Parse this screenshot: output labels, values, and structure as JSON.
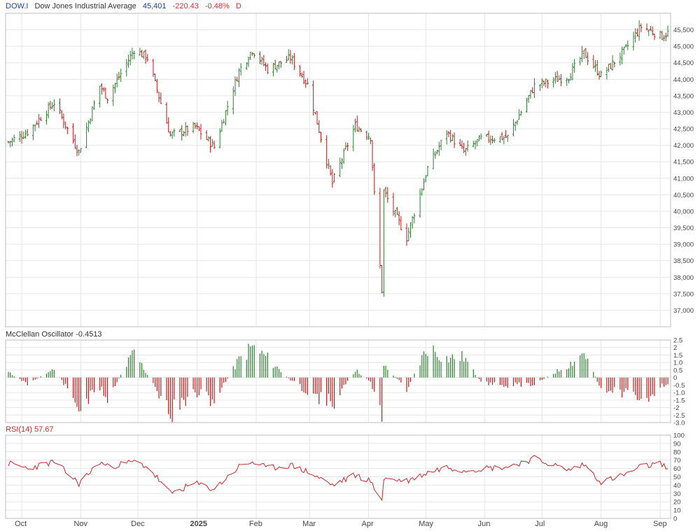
{
  "header": {
    "symbol": "DOW.I",
    "name": "Dow Jones Industrial Average",
    "last": "45,401",
    "change": "-220.43",
    "change_pct": "-0.48%",
    "period": "D"
  },
  "colors": {
    "up": "#2e7d32",
    "down": "#b71c1c",
    "symbol": "#1a3fa8",
    "negative": "#d32f2f",
    "grid": "#e6e6e6",
    "rsi_line": "#c62828"
  },
  "osc_header": {
    "label": "McClellan Oscillator -0.4513"
  },
  "rsi_header": {
    "label": "RSI(14) 57.67"
  },
  "chart_data": [
    {
      "type": "line",
      "title": "DOW.I Dow Jones Industrial Average",
      "subtype": "ohlc",
      "x": [
        "2024-09-24",
        "2024-10-04",
        "2024-10-18",
        "2024-10-31",
        "2024-11-11",
        "2024-11-15",
        "2024-11-29",
        "2024-12-06",
        "2024-12-18",
        "2024-12-31",
        "2025-01-10",
        "2025-01-23",
        "2025-01-30",
        "2025-02-07",
        "2025-02-19",
        "2025-02-28",
        "2025-03-13",
        "2025-03-25",
        "2025-04-02",
        "2025-04-04",
        "2025-04-08",
        "2025-04-09",
        "2025-04-21",
        "2025-05-02",
        "2025-05-12",
        "2025-05-21",
        "2025-05-30",
        "2025-06-13",
        "2025-06-27",
        "2025-07-15",
        "2025-07-23",
        "2025-08-01",
        "2025-08-13",
        "2025-08-22",
        "2025-09-02",
        "2025-09-05"
      ],
      "y": [
        42100,
        42400,
        43300,
        41800,
        43800,
        43450,
        44900,
        44650,
        42300,
        42550,
        41950,
        44250,
        44900,
        44300,
        44650,
        43850,
        40850,
        42600,
        42250,
        40500,
        37600,
        40600,
        39200,
        41300,
        42400,
        41800,
        42200,
        42250,
        43800,
        44100,
        44800,
        44100,
        44850,
        45600,
        45300,
        45401
      ],
      "ylim": [
        36500,
        46000
      ],
      "yticks": [
        "37,000",
        "37,500",
        "38,000",
        "38,500",
        "39,000",
        "39,500",
        "40,000",
        "40,500",
        "41,000",
        "41,500",
        "42,000",
        "42,500",
        "43,000",
        "43,500",
        "44,000",
        "44,500",
        "45,000",
        "45,500"
      ],
      "xticks": [
        "Oct",
        "Nov",
        "Dec",
        "2025",
        "Feb",
        "Mar",
        "Apr",
        "May",
        "Jun",
        "Jul",
        "Aug",
        "Sep"
      ],
      "grid": true
    },
    {
      "type": "bar",
      "title": "McClellan Oscillator -0.4513",
      "x": [
        "2024-09-24",
        "2024-10-04",
        "2024-10-18",
        "2024-10-31",
        "2024-11-11",
        "2024-11-15",
        "2024-11-29",
        "2024-12-06",
        "2024-12-18",
        "2024-12-31",
        "2025-01-10",
        "2025-01-23",
        "2025-01-30",
        "2025-02-07",
        "2025-02-19",
        "2025-02-28",
        "2025-03-13",
        "2025-03-25",
        "2025-04-02",
        "2025-04-04",
        "2025-04-08",
        "2025-04-09",
        "2025-04-21",
        "2025-05-02",
        "2025-05-12",
        "2025-05-21",
        "2025-05-30",
        "2025-06-13",
        "2025-06-27",
        "2025-07-15",
        "2025-07-23",
        "2025-08-01",
        "2025-08-13",
        "2025-08-22",
        "2025-09-02",
        "2025-09-05"
      ],
      "values": [
        0.4,
        -0.5,
        0.7,
        -2.4,
        -0.8,
        -1.6,
        2.0,
        0.2,
        -2.8,
        -1.2,
        -1.8,
        1.4,
        2.4,
        1.5,
        -0.2,
        -1.1,
        -2.1,
        0.6,
        -0.3,
        -1.2,
        -2.7,
        1.0,
        -0.9,
        2.4,
        1.5,
        1.6,
        -0.4,
        -0.6,
        -0.5,
        1.0,
        2.0,
        -0.9,
        -1.2,
        -2.0,
        -0.6,
        -0.45
      ],
      "ylim": [
        -3,
        2.5
      ],
      "yticks": [
        "2.5",
        "2",
        "1.5",
        "1.0",
        "0.5",
        "0",
        "-0.5",
        "-1.0",
        "-1.5",
        "-2",
        "-2.5",
        "-3.0"
      ],
      "grid": true
    },
    {
      "type": "line",
      "title": "RSI(14) 57.67",
      "x": [
        "2024-09-24",
        "2024-10-04",
        "2024-10-18",
        "2024-10-31",
        "2024-11-11",
        "2024-11-15",
        "2024-11-29",
        "2024-12-06",
        "2024-12-18",
        "2024-12-31",
        "2025-01-10",
        "2025-01-23",
        "2025-01-30",
        "2025-02-07",
        "2025-02-19",
        "2025-02-28",
        "2025-03-13",
        "2025-03-25",
        "2025-04-02",
        "2025-04-04",
        "2025-04-08",
        "2025-04-09",
        "2025-04-21",
        "2025-05-02",
        "2025-05-12",
        "2025-05-21",
        "2025-05-30",
        "2025-06-13",
        "2025-06-27",
        "2025-07-15",
        "2025-07-23",
        "2025-08-01",
        "2025-08-13",
        "2025-08-22",
        "2025-09-02",
        "2025-09-05"
      ],
      "values": [
        66,
        60,
        68,
        42,
        68,
        62,
        68,
        62,
        30,
        42,
        35,
        62,
        68,
        60,
        64,
        56,
        40,
        52,
        45,
        34,
        24,
        48,
        45,
        55,
        62,
        58,
        60,
        62,
        72,
        58,
        65,
        44,
        52,
        62,
        66,
        57.67
      ],
      "ylim": [
        0,
        100
      ],
      "yticks": [
        "100",
        "90",
        "80",
        "70",
        "60",
        "50",
        "40",
        "30",
        "20",
        "10",
        "0"
      ],
      "grid": true
    }
  ]
}
